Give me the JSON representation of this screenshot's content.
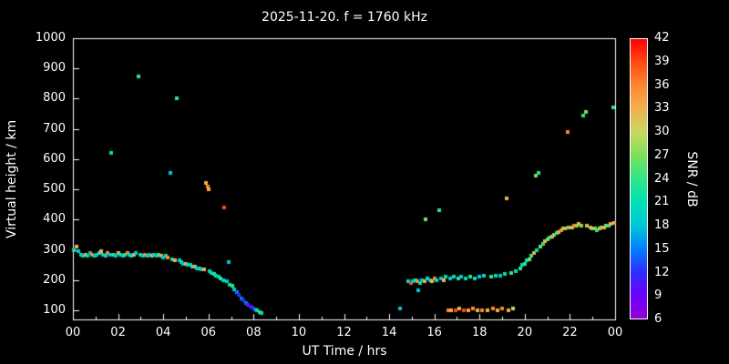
{
  "chart_data": {
    "type": "scatter",
    "title": "2025-11-20. f = 1760 kHz",
    "xlabel": "UT Time / hrs",
    "ylabel": "Virtual height / km",
    "colorbar_label": "SNR / dB",
    "background": "#000000",
    "frame_color": "#ffffff",
    "xlim": [
      0,
      24
    ],
    "ylim": [
      70,
      1000
    ],
    "x_ticks": [
      "00",
      "02",
      "04",
      "06",
      "08",
      "10",
      "12",
      "14",
      "16",
      "18",
      "20",
      "22",
      "00"
    ],
    "y_ticks": [
      100,
      200,
      300,
      400,
      500,
      600,
      700,
      800,
      900,
      1000
    ],
    "colorbar_ticks": [
      6,
      9,
      12,
      15,
      18,
      21,
      24,
      27,
      30,
      33,
      36,
      39,
      42
    ],
    "color_scale": [
      {
        "value": 6,
        "color": "#9400d3"
      },
      {
        "value": 9,
        "color": "#6a00ff"
      },
      {
        "value": 12,
        "color": "#2e2eff"
      },
      {
        "value": 15,
        "color": "#0080ff"
      },
      {
        "value": 18,
        "color": "#00c8d8"
      },
      {
        "value": 21,
        "color": "#00e0b4"
      },
      {
        "value": 24,
        "color": "#2ee68a"
      },
      {
        "value": 27,
        "color": "#7ce05a"
      },
      {
        "value": 30,
        "color": "#c8d860"
      },
      {
        "value": 33,
        "color": "#f0b050"
      },
      {
        "value": 36,
        "color": "#ff8830"
      },
      {
        "value": 39,
        "color": "#ff4a14"
      },
      {
        "value": 42,
        "color": "#ff0000"
      }
    ],
    "points": [
      [
        0.05,
        300,
        21
      ],
      [
        0.15,
        310,
        33
      ],
      [
        0.25,
        295,
        18
      ],
      [
        0.35,
        285,
        21
      ],
      [
        0.45,
        280,
        18
      ],
      [
        0.55,
        285,
        33
      ],
      [
        0.65,
        280,
        21
      ],
      [
        0.75,
        290,
        18
      ],
      [
        0.85,
        285,
        36
      ],
      [
        0.95,
        280,
        21
      ],
      [
        1.05,
        285,
        18
      ],
      [
        1.15,
        290,
        24
      ],
      [
        1.25,
        295,
        33
      ],
      [
        1.35,
        285,
        18
      ],
      [
        1.45,
        280,
        21
      ],
      [
        1.55,
        290,
        36
      ],
      [
        1.65,
        285,
        18
      ],
      [
        1.7,
        620,
        21
      ],
      [
        1.8,
        285,
        24
      ],
      [
        1.9,
        280,
        18
      ],
      [
        2.0,
        290,
        33
      ],
      [
        2.1,
        285,
        21
      ],
      [
        2.2,
        280,
        18
      ],
      [
        2.3,
        285,
        24
      ],
      [
        2.4,
        290,
        36
      ],
      [
        2.5,
        285,
        18
      ],
      [
        2.6,
        280,
        21
      ],
      [
        2.7,
        285,
        33
      ],
      [
        2.8,
        290,
        18
      ],
      [
        2.9,
        875,
        24
      ],
      [
        3.0,
        285,
        21
      ],
      [
        3.1,
        280,
        18
      ],
      [
        3.2,
        285,
        36
      ],
      [
        3.3,
        280,
        21
      ],
      [
        3.4,
        285,
        18
      ],
      [
        3.5,
        280,
        33
      ],
      [
        3.6,
        285,
        21
      ],
      [
        3.7,
        280,
        18
      ],
      [
        3.8,
        285,
        24
      ],
      [
        3.9,
        280,
        33
      ],
      [
        4.0,
        275,
        18
      ],
      [
        4.1,
        280,
        21
      ],
      [
        4.2,
        275,
        36
      ],
      [
        4.3,
        555,
        18
      ],
      [
        4.4,
        270,
        21
      ],
      [
        4.5,
        265,
        33
      ],
      [
        4.6,
        800,
        24
      ],
      [
        4.7,
        265,
        18
      ],
      [
        4.8,
        260,
        21
      ],
      [
        4.9,
        255,
        18
      ],
      [
        5.0,
        255,
        33
      ],
      [
        5.1,
        250,
        21
      ],
      [
        5.2,
        250,
        18
      ],
      [
        5.3,
        245,
        24
      ],
      [
        5.4,
        245,
        33
      ],
      [
        5.5,
        240,
        18
      ],
      [
        5.6,
        240,
        21
      ],
      [
        5.7,
        235,
        18
      ],
      [
        5.8,
        235,
        33
      ],
      [
        5.9,
        520,
        33
      ],
      [
        5.95,
        510,
        36
      ],
      [
        6.0,
        500,
        33
      ],
      [
        6.05,
        230,
        21
      ],
      [
        6.15,
        225,
        18
      ],
      [
        6.25,
        220,
        24
      ],
      [
        6.35,
        215,
        21
      ],
      [
        6.45,
        210,
        18
      ],
      [
        6.55,
        205,
        24
      ],
      [
        6.65,
        200,
        21
      ],
      [
        6.7,
        440,
        39
      ],
      [
        6.8,
        195,
        18
      ],
      [
        6.9,
        260,
        18
      ],
      [
        6.95,
        185,
        21
      ],
      [
        7.05,
        180,
        24
      ],
      [
        7.15,
        170,
        18
      ],
      [
        7.25,
        160,
        15
      ],
      [
        7.35,
        150,
        12
      ],
      [
        7.45,
        140,
        15
      ],
      [
        7.55,
        132,
        12
      ],
      [
        7.65,
        125,
        15
      ],
      [
        7.75,
        118,
        12
      ],
      [
        7.85,
        112,
        9
      ],
      [
        7.95,
        108,
        12
      ],
      [
        8.05,
        104,
        15
      ],
      [
        8.15,
        100,
        21
      ],
      [
        8.25,
        95,
        24
      ],
      [
        8.35,
        92,
        21
      ],
      [
        14.5,
        105,
        18
      ],
      [
        14.85,
        195,
        21
      ],
      [
        14.95,
        190,
        39
      ],
      [
        15.05,
        195,
        18
      ],
      [
        15.15,
        200,
        21
      ],
      [
        15.25,
        195,
        36
      ],
      [
        15.3,
        165,
        18
      ],
      [
        15.35,
        190,
        21
      ],
      [
        15.45,
        200,
        18
      ],
      [
        15.55,
        195,
        33
      ],
      [
        15.6,
        400,
        27
      ],
      [
        15.7,
        205,
        21
      ],
      [
        15.8,
        200,
        18
      ],
      [
        15.9,
        195,
        33
      ],
      [
        16.0,
        205,
        36
      ],
      [
        16.1,
        200,
        21
      ],
      [
        16.2,
        430,
        24
      ],
      [
        16.3,
        205,
        18
      ],
      [
        16.4,
        200,
        33
      ],
      [
        16.5,
        210,
        21
      ],
      [
        16.6,
        100,
        36
      ],
      [
        16.7,
        205,
        18
      ],
      [
        16.75,
        100,
        33
      ],
      [
        16.85,
        210,
        21
      ],
      [
        16.95,
        100,
        39
      ],
      [
        17.05,
        205,
        24
      ],
      [
        17.1,
        105,
        33
      ],
      [
        17.2,
        210,
        18
      ],
      [
        17.3,
        100,
        39
      ],
      [
        17.4,
        205,
        21
      ],
      [
        17.5,
        100,
        33
      ],
      [
        17.6,
        210,
        24
      ],
      [
        17.7,
        105,
        36
      ],
      [
        17.8,
        205,
        21
      ],
      [
        17.9,
        100,
        33
      ],
      [
        18.0,
        210,
        18
      ],
      [
        18.1,
        100,
        36
      ],
      [
        18.2,
        215,
        21
      ],
      [
        18.35,
        100,
        33
      ],
      [
        18.5,
        210,
        24
      ],
      [
        18.6,
        105,
        36
      ],
      [
        18.7,
        215,
        21
      ],
      [
        18.8,
        100,
        33
      ],
      [
        18.9,
        215,
        18
      ],
      [
        19.0,
        105,
        36
      ],
      [
        19.1,
        220,
        21
      ],
      [
        19.2,
        470,
        33
      ],
      [
        19.3,
        100,
        33
      ],
      [
        19.4,
        225,
        24
      ],
      [
        19.5,
        105,
        30
      ],
      [
        19.6,
        230,
        21
      ],
      [
        19.8,
        240,
        24
      ],
      [
        19.9,
        250,
        21
      ],
      [
        20.0,
        255,
        24
      ],
      [
        20.1,
        265,
        21
      ],
      [
        20.2,
        270,
        27
      ],
      [
        20.3,
        280,
        24
      ],
      [
        20.4,
        290,
        33
      ],
      [
        20.5,
        545,
        27
      ],
      [
        20.55,
        300,
        21
      ],
      [
        20.6,
        555,
        24
      ],
      [
        20.7,
        310,
        27
      ],
      [
        20.8,
        320,
        24
      ],
      [
        20.9,
        330,
        33
      ],
      [
        21.0,
        335,
        27
      ],
      [
        21.1,
        340,
        24
      ],
      [
        21.2,
        345,
        33
      ],
      [
        21.3,
        350,
        27
      ],
      [
        21.4,
        355,
        24
      ],
      [
        21.5,
        360,
        33
      ],
      [
        21.6,
        365,
        36
      ],
      [
        21.7,
        370,
        27
      ],
      [
        21.8,
        370,
        33
      ],
      [
        21.9,
        690,
        36
      ],
      [
        21.95,
        375,
        27
      ],
      [
        22.1,
        375,
        33
      ],
      [
        22.2,
        380,
        36
      ],
      [
        22.3,
        380,
        27
      ],
      [
        22.4,
        385,
        33
      ],
      [
        22.5,
        380,
        27
      ],
      [
        22.6,
        745,
        24
      ],
      [
        22.7,
        755,
        27
      ],
      [
        22.75,
        380,
        33
      ],
      [
        22.9,
        375,
        27
      ],
      [
        23.0,
        370,
        33
      ],
      [
        23.1,
        370,
        27
      ],
      [
        23.2,
        365,
        24
      ],
      [
        23.3,
        370,
        33
      ],
      [
        23.4,
        375,
        27
      ],
      [
        23.5,
        375,
        33
      ],
      [
        23.6,
        380,
        27
      ],
      [
        23.7,
        380,
        24
      ],
      [
        23.8,
        385,
        33
      ],
      [
        23.9,
        770,
        24
      ],
      [
        23.95,
        390,
        33
      ]
    ]
  }
}
